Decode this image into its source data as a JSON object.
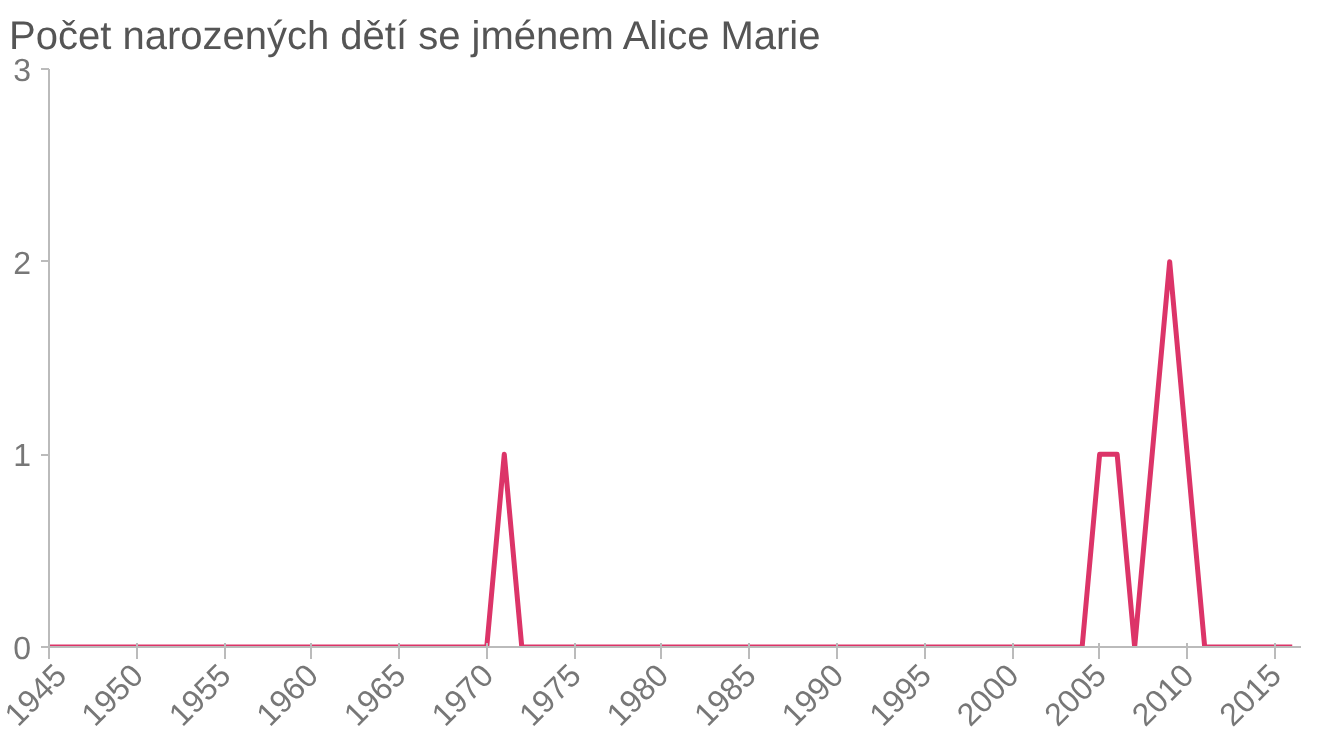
{
  "chart_data": {
    "type": "line",
    "title": "Počet narozených dětí se jménem Alice Marie",
    "x": [
      1945,
      1970,
      1971,
      1972,
      2004,
      2005,
      2006,
      2007,
      2008,
      2009,
      2010,
      2011,
      2016
    ],
    "series": [
      {
        "color": "#dc3468",
        "values": [
          0,
          0,
          1,
          0,
          0,
          1,
          1,
          0,
          1,
          2,
          1,
          0,
          0
        ]
      }
    ],
    "xlim": [
      1945,
      2016.5
    ],
    "xticks": [
      1945,
      1950,
      1955,
      1960,
      1965,
      1970,
      1975,
      1980,
      1985,
      1990,
      1995,
      2000,
      2005,
      2010,
      2015
    ],
    "ylim": [
      0,
      3
    ],
    "yticks": [
      0,
      1,
      2,
      3
    ],
    "grid": false,
    "marker": "none",
    "line_style": "solid"
  }
}
